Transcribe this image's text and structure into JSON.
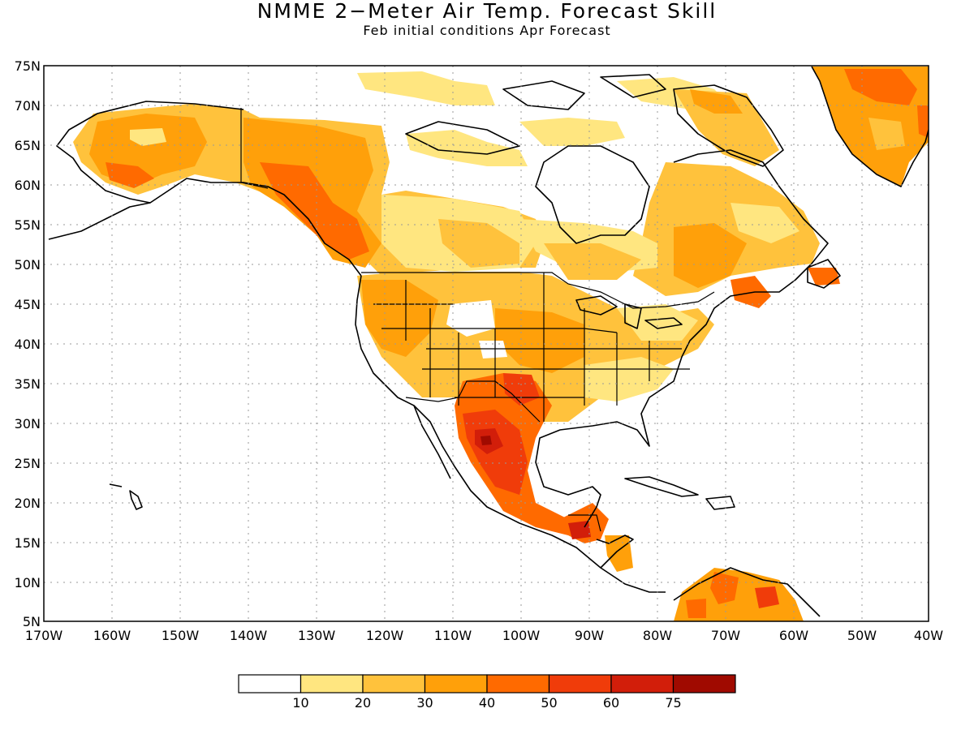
{
  "title": "NMME 2−Meter Air Temp. Forecast Skill",
  "subtitle": "Feb initial conditions  Apr Forecast",
  "map": {
    "region": "North America",
    "lon_range": [
      -170,
      -40
    ],
    "lat_range": [
      5,
      75
    ],
    "grid": "dotted",
    "lat_labels": [
      "75N",
      "70N",
      "65N",
      "60N",
      "55N",
      "50N",
      "45N",
      "40N",
      "35N",
      "30N",
      "25N",
      "20N",
      "15N",
      "10N",
      "5N"
    ],
    "lon_labels": [
      "170W",
      "160W",
      "150W",
      "140W",
      "130W",
      "120W",
      "110W",
      "100W",
      "90W",
      "80W",
      "70W",
      "60W",
      "50W",
      "40W"
    ]
  },
  "legend": {
    "labels": [
      "10",
      "20",
      "30",
      "40",
      "50",
      "60",
      "75"
    ],
    "colors": [
      "#ffffff",
      "#ffe680",
      "#ffc23c",
      "#ffa00a",
      "#ff6a00",
      "#f03c0a",
      "#d21e0a",
      "#a00a00"
    ]
  }
}
